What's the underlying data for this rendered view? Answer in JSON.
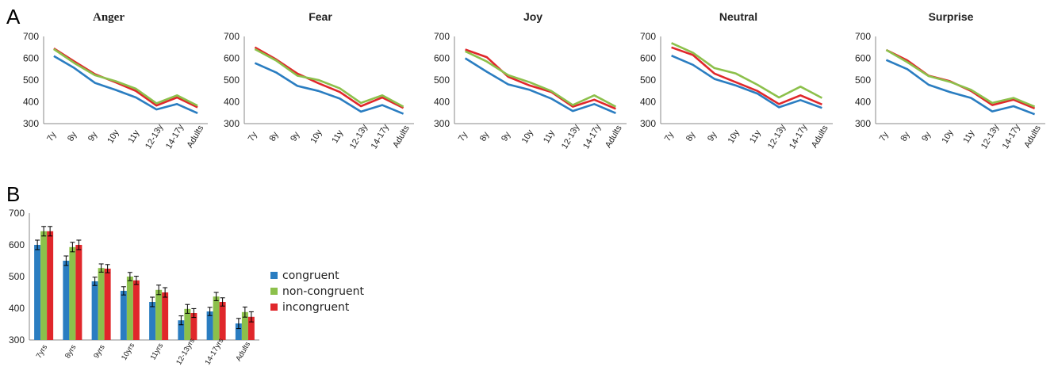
{
  "figure": {
    "panel_a_label": "A",
    "panel_b_label": "B"
  },
  "colors": {
    "congruent": "#2a7dc1",
    "non-congruent": "#8cc04b",
    "incongruent": "#e0272b"
  },
  "chart_data": [
    {
      "type": "line",
      "title": "Anger",
      "categories": [
        "7y",
        "8y",
        "9y",
        "10y",
        "11y",
        "12-13y",
        "14-17y",
        "Adults"
      ],
      "ylim": [
        300,
        700
      ],
      "yticks": [
        300,
        400,
        500,
        600,
        700
      ],
      "series": [
        {
          "key": "congruent",
          "values": [
            610,
            555,
            487,
            455,
            420,
            365,
            390,
            348
          ]
        },
        {
          "key": "incongruent",
          "values": [
            645,
            585,
            527,
            490,
            450,
            383,
            420,
            375
          ]
        },
        {
          "key": "non-congruent",
          "values": [
            642,
            578,
            522,
            495,
            460,
            393,
            430,
            382
          ]
        }
      ]
    },
    {
      "type": "line",
      "title": "Fear",
      "categories": [
        "7y",
        "8y",
        "9y",
        "10y",
        "11y",
        "12-13y",
        "14-17y",
        "Adults"
      ],
      "ylim": [
        300,
        700
      ],
      "yticks": [
        300,
        400,
        500,
        600,
        700
      ],
      "series": [
        {
          "key": "congruent",
          "values": [
            578,
            535,
            473,
            450,
            415,
            355,
            385,
            345
          ]
        },
        {
          "key": "incongruent",
          "values": [
            650,
            595,
            530,
            485,
            445,
            380,
            420,
            372
          ]
        },
        {
          "key": "non-congruent",
          "values": [
            642,
            590,
            520,
            500,
            462,
            395,
            430,
            378
          ]
        }
      ]
    },
    {
      "type": "line",
      "title": "Joy",
      "categories": [
        "7y",
        "8y",
        "9y",
        "10y",
        "11y",
        "12-13y",
        "14-17y",
        "Adults"
      ],
      "ylim": [
        300,
        700
      ],
      "yticks": [
        300,
        400,
        500,
        600,
        700
      ],
      "series": [
        {
          "key": "congruent",
          "values": [
            600,
            538,
            480,
            455,
            415,
            358,
            390,
            348
          ]
        },
        {
          "key": "incongruent",
          "values": [
            640,
            605,
            515,
            475,
            445,
            378,
            410,
            368
          ]
        },
        {
          "key": "non-congruent",
          "values": [
            632,
            585,
            522,
            490,
            450,
            385,
            430,
            378
          ]
        }
      ]
    },
    {
      "type": "line",
      "title": "Neutral",
      "categories": [
        "7y",
        "8y",
        "9y",
        "10y",
        "11y",
        "12-13y",
        "14-17y",
        "Adults"
      ],
      "ylim": [
        300,
        700
      ],
      "yticks": [
        300,
        400,
        500,
        600,
        700
      ],
      "series": [
        {
          "key": "congruent",
          "values": [
            612,
            570,
            505,
            475,
            438,
            375,
            408,
            372
          ]
        },
        {
          "key": "incongruent",
          "values": [
            650,
            615,
            530,
            490,
            450,
            390,
            430,
            388
          ]
        },
        {
          "key": "non-congruent",
          "values": [
            670,
            625,
            555,
            530,
            478,
            420,
            470,
            418
          ]
        }
      ]
    },
    {
      "type": "line",
      "title": "Surprise",
      "categories": [
        "7y",
        "8y",
        "9y",
        "10y",
        "11y",
        "12-13y",
        "14-17y",
        "Adults"
      ],
      "ylim": [
        300,
        700
      ],
      "yticks": [
        300,
        400,
        500,
        600,
        700
      ],
      "series": [
        {
          "key": "congruent",
          "values": [
            592,
            550,
            478,
            445,
            418,
            356,
            380,
            343
          ]
        },
        {
          "key": "incongruent",
          "values": [
            638,
            590,
            520,
            495,
            450,
            385,
            410,
            370
          ]
        },
        {
          "key": "non-congruent",
          "values": [
            638,
            582,
            518,
            492,
            455,
            395,
            418,
            378
          ]
        }
      ]
    },
    {
      "type": "bar",
      "title": "",
      "categories": [
        "7yrs",
        "8yrs",
        "9yrs",
        "10yrs",
        "11yrs",
        "12-13yrs",
        "14-17yrs",
        "Adults"
      ],
      "ylim": [
        300,
        700
      ],
      "yticks": [
        300,
        400,
        500,
        600,
        700
      ],
      "legend_position": "right",
      "series": [
        {
          "name": "congruent",
          "key": "congruent",
          "values": [
            600,
            550,
            485,
            455,
            420,
            362,
            390,
            352
          ],
          "errors": [
            15,
            15,
            13,
            13,
            15,
            14,
            13,
            16
          ]
        },
        {
          "name": "non-congruent",
          "key": "non-congruent",
          "values": [
            643,
            593,
            527,
            500,
            458,
            398,
            437,
            388
          ],
          "errors": [
            15,
            15,
            13,
            13,
            15,
            14,
            13,
            16
          ]
        },
        {
          "name": "incongruent",
          "key": "incongruent",
          "values": [
            643,
            600,
            525,
            488,
            450,
            385,
            420,
            373
          ],
          "errors": [
            15,
            15,
            13,
            13,
            15,
            14,
            13,
            16
          ]
        }
      ]
    }
  ]
}
